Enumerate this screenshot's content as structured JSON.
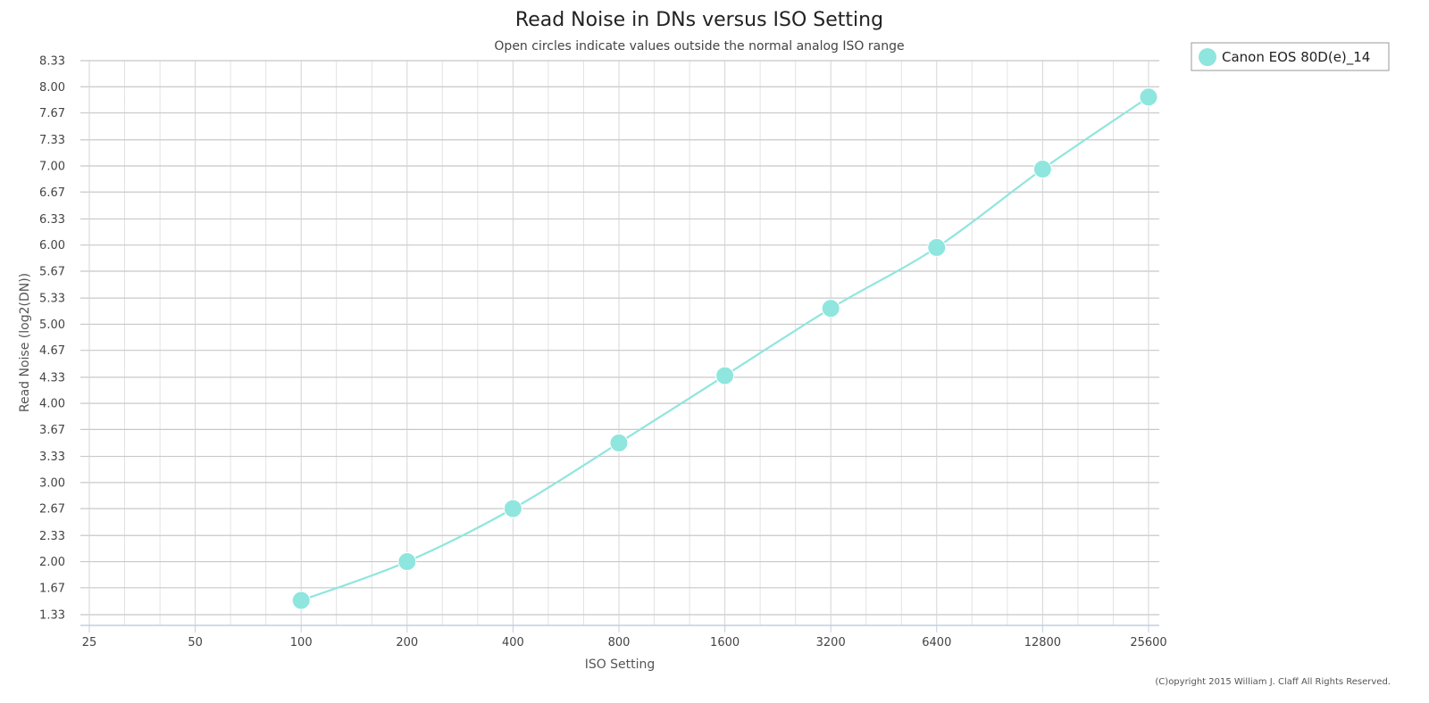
{
  "chart_data": {
    "type": "line",
    "title": "Read Noise in DNs versus ISO Setting",
    "subtitle": "Open circles indicate values outside the normal analog ISO range",
    "xlabel": "ISO Setting",
    "ylabel": "Read Noise (log2(DN))",
    "x_scale": "log2",
    "x_ticks": [
      "25",
      "50",
      "100",
      "200",
      "400",
      "800",
      "1600",
      "3200",
      "6400",
      "12800",
      "25600"
    ],
    "y_ticks": [
      "1.33",
      "1.67",
      "2.00",
      "2.33",
      "2.67",
      "3.00",
      "3.33",
      "3.67",
      "4.00",
      "4.33",
      "4.67",
      "5.00",
      "5.33",
      "5.67",
      "6.00",
      "6.33",
      "6.67",
      "7.00",
      "7.33",
      "7.67",
      "8.00",
      "8.33"
    ],
    "xlim": [
      25,
      25600
    ],
    "ylim": [
      1.18,
      8.33
    ],
    "grid": true,
    "legend_position": "top-right",
    "series": [
      {
        "name": "Canon EOS 80D(e)_14",
        "color": "#8fe6de",
        "marker": "filled-circle",
        "x": [
          100,
          200,
          400,
          800,
          1600,
          3200,
          6400,
          12800,
          25600
        ],
        "y": [
          1.51,
          2.0,
          2.67,
          3.5,
          4.35,
          5.2,
          5.97,
          6.96,
          7.87
        ]
      }
    ]
  },
  "copyright": "(C)opyright 2015 William J. Claff All Rights Reserved."
}
